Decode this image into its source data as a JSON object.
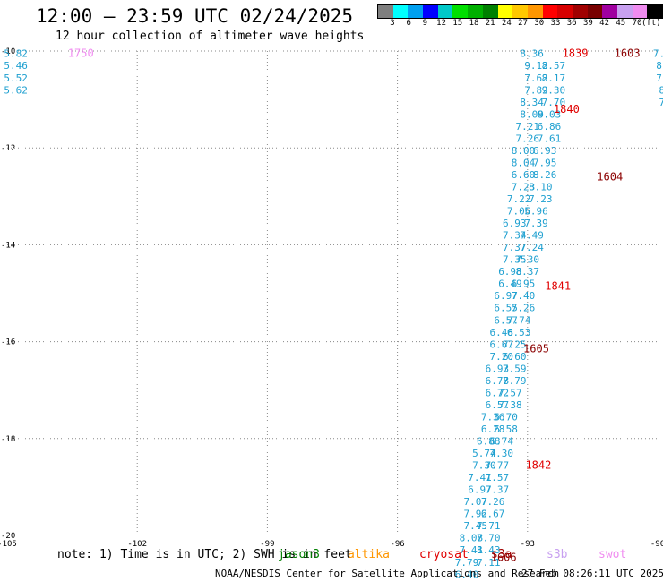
{
  "header": {
    "title": "12:00 – 23:59 UTC 02/24/2025",
    "subtitle": "12 hour collection of altimeter wave heights"
  },
  "color_scale": {
    "colors": [
      "#7f7f7f",
      "#00ffff",
      "#00a0f0",
      "#0000ff",
      "#00c8c8",
      "#00e000",
      "#00b000",
      "#008000",
      "#ffff00",
      "#ffc800",
      "#ff9600",
      "#ff0000",
      "#d70000",
      "#a00000",
      "#780000",
      "#a000a0",
      "#c8a0f0",
      "#f08cf0",
      "#000000"
    ],
    "labels": [
      "3",
      "6",
      "9",
      "12",
      "15",
      "18",
      "21",
      "24",
      "27",
      "30",
      "33",
      "36",
      "39",
      "42",
      "45",
      "70"
    ],
    "unit": "(ft)"
  },
  "map": {
    "lon_ticks": [
      "-105",
      "-102",
      "-99",
      "-96",
      "-93",
      "-90"
    ],
    "lat_ticks": [
      "-10",
      "-12",
      "-14",
      "-16",
      "-18",
      "-20"
    ]
  },
  "chart_data": {
    "type": "scatter",
    "xlim": [
      -105,
      -90
    ],
    "ylim": [
      -20,
      -10
    ],
    "tracks": [
      {
        "color": "#1fa0d0",
        "points": [
          [
            -92.9,
            -10.05,
            "8.36"
          ],
          [
            -92.8,
            -10.3,
            "9.12"
          ],
          [
            -92.8,
            -10.55,
            "7.62"
          ],
          [
            -92.8,
            -10.8,
            "7.82"
          ],
          [
            -92.9,
            -11.05,
            "8.34"
          ],
          [
            -92.9,
            -11.3,
            "8.09"
          ],
          [
            -93.0,
            -11.55,
            "7.21"
          ],
          [
            -93.0,
            -11.8,
            "7.26"
          ],
          [
            -93.1,
            -12.05,
            "8.00"
          ],
          [
            -93.1,
            -12.3,
            "8.04"
          ],
          [
            -93.1,
            -12.55,
            "6.60"
          ],
          [
            -93.1,
            -12.8,
            "7.23"
          ],
          [
            -93.2,
            -13.05,
            "7.22"
          ],
          [
            -93.2,
            -13.3,
            "7.06"
          ],
          [
            -93.3,
            -13.55,
            "6.93"
          ],
          [
            -93.3,
            -13.8,
            "7.34"
          ],
          [
            -93.3,
            -14.05,
            "7.37"
          ],
          [
            -93.3,
            -14.3,
            "7.35"
          ],
          [
            -93.4,
            -14.55,
            "6.98"
          ],
          [
            -93.4,
            -14.8,
            "6.49"
          ],
          [
            -93.5,
            -15.05,
            "6.97"
          ],
          [
            -93.5,
            -15.3,
            "6.55"
          ],
          [
            -93.5,
            -15.55,
            "6.57"
          ],
          [
            -93.6,
            -15.8,
            "6.48"
          ],
          [
            -93.6,
            -16.05,
            "6.67"
          ],
          [
            -93.6,
            -16.3,
            "7.20"
          ],
          [
            -93.7,
            -16.55,
            "6.93"
          ],
          [
            -93.7,
            -16.8,
            "6.78"
          ],
          [
            -93.7,
            -17.05,
            "6.72"
          ],
          [
            -93.7,
            -17.3,
            "6.57"
          ],
          [
            -93.8,
            -17.55,
            "7.36"
          ],
          [
            -93.8,
            -17.8,
            "6.28"
          ],
          [
            -93.9,
            -18.05,
            "6.88"
          ],
          [
            -94.0,
            -18.3,
            "5.74"
          ],
          [
            -94.0,
            -18.55,
            "7.30"
          ],
          [
            -94.1,
            -18.8,
            "7.41"
          ],
          [
            -94.1,
            -19.05,
            "6.97"
          ],
          [
            -94.2,
            -19.3,
            "7.07"
          ],
          [
            -94.2,
            -19.55,
            "7.92"
          ],
          [
            -94.2,
            -19.8,
            "7.45"
          ],
          [
            -94.3,
            -20.05,
            "8.08"
          ],
          [
            -94.3,
            -20.3,
            "7.41"
          ],
          [
            -94.4,
            -20.55,
            "7.79"
          ],
          [
            -94.4,
            -20.8,
            "6.40"
          ]
        ]
      },
      {
        "color": "#1fa0d0",
        "points": [
          [
            -92.4,
            -10.3,
            "8.57"
          ],
          [
            -92.4,
            -10.55,
            "8.17"
          ],
          [
            -92.4,
            -10.8,
            "9.30"
          ],
          [
            -92.4,
            -11.05,
            "7.70"
          ],
          [
            -92.5,
            -11.3,
            "8.03"
          ],
          [
            -92.5,
            -11.55,
            "6.86"
          ],
          [
            -92.5,
            -11.8,
            "7.61"
          ],
          [
            -92.6,
            -12.05,
            "6.93"
          ],
          [
            -92.6,
            -12.3,
            "7.95"
          ],
          [
            -92.6,
            -12.55,
            "8.26"
          ],
          [
            -92.7,
            -12.8,
            "8.10"
          ],
          [
            -92.7,
            -13.05,
            "7.23"
          ],
          [
            -92.8,
            -13.3,
            "5.96"
          ],
          [
            -92.8,
            -13.55,
            "7.39"
          ],
          [
            -92.9,
            -13.8,
            "7.49"
          ],
          [
            -92.9,
            -14.05,
            "7.24"
          ],
          [
            -93.0,
            -14.3,
            "7.30"
          ],
          [
            -93.0,
            -14.55,
            "8.37"
          ],
          [
            -93.1,
            -14.8,
            "6.95"
          ],
          [
            -93.1,
            -15.05,
            "7.40"
          ],
          [
            -93.1,
            -15.3,
            "7.26"
          ],
          [
            -93.2,
            -15.55,
            "7.74"
          ],
          [
            -93.2,
            -15.8,
            "6.53"
          ],
          [
            -93.3,
            -16.05,
            "7.25"
          ],
          [
            -93.3,
            -16.3,
            "6.60"
          ],
          [
            -93.3,
            -16.55,
            "7.59"
          ],
          [
            -93.3,
            -16.8,
            "7.79"
          ],
          [
            -93.4,
            -17.05,
            "7.57"
          ],
          [
            -93.4,
            -17.3,
            "7.38"
          ],
          [
            -93.5,
            -17.55,
            "6.70"
          ],
          [
            -93.5,
            -17.8,
            "6.58"
          ],
          [
            -93.6,
            -18.05,
            "6.74"
          ],
          [
            -93.6,
            -18.3,
            "7.30"
          ],
          [
            -93.7,
            -18.55,
            "7.77"
          ],
          [
            -93.7,
            -18.8,
            "7.57"
          ],
          [
            -93.7,
            -19.05,
            "7.37"
          ],
          [
            -93.8,
            -19.3,
            "7.26"
          ],
          [
            -93.8,
            -19.55,
            "6.67"
          ],
          [
            -93.9,
            -19.8,
            "7.71"
          ],
          [
            -93.9,
            -20.05,
            "7.70"
          ],
          [
            -93.9,
            -20.3,
            "8.43"
          ],
          [
            -93.9,
            -20.55,
            "7.11"
          ]
        ]
      },
      {
        "color": "#1fa0d0",
        "points": [
          [
            -104.8,
            -10.05,
            "5.82"
          ],
          [
            -104.8,
            -10.3,
            "5.46"
          ],
          [
            -104.8,
            -10.55,
            "5.52"
          ],
          [
            -104.8,
            -10.8,
            "5.62"
          ]
        ]
      },
      {
        "color": "#1fa0d0",
        "points": [
          [
            -89.9,
            -10.05,
            "7.9"
          ],
          [
            -89.9,
            -10.3,
            "8."
          ],
          [
            -89.9,
            -10.55,
            "7."
          ],
          [
            -89.9,
            -10.8,
            "8"
          ],
          [
            -89.9,
            -11.05,
            "7"
          ]
        ]
      }
    ],
    "time_labels": [
      {
        "lon": -103.3,
        "lat": -10.05,
        "text": "1750",
        "color": "#f08cf0"
      },
      {
        "lon": -91.9,
        "lat": -10.05,
        "text": "1839",
        "color": "#e00000"
      },
      {
        "lon": -90.7,
        "lat": -10.05,
        "text": "1603",
        "color": "#8b0000"
      },
      {
        "lon": -92.1,
        "lat": -11.2,
        "text": "1840",
        "color": "#e00000"
      },
      {
        "lon": -91.1,
        "lat": -12.6,
        "text": "1604",
        "color": "#8b0000"
      },
      {
        "lon": -92.3,
        "lat": -14.85,
        "text": "1841",
        "color": "#e00000"
      },
      {
        "lon": -92.8,
        "lat": -16.15,
        "text": "1605",
        "color": "#8b0000"
      },
      {
        "lon": -92.75,
        "lat": -18.55,
        "text": "1842",
        "color": "#e00000"
      },
      {
        "lon": -93.55,
        "lat": -20.45,
        "text": "1606",
        "color": "#8b0000"
      }
    ]
  },
  "note": "note: 1) Time is in UTC; 2) SWH is in feet",
  "satellites": [
    {
      "name": "jason3",
      "color": "#008000",
      "left": 310
    },
    {
      "name": "altika",
      "color": "#ff9600",
      "left": 388
    },
    {
      "name": "cryosat",
      "color": "#e00000",
      "left": 468
    },
    {
      "name": "s3a",
      "color": "#a00000",
      "left": 548
    },
    {
      "name": "s3b",
      "color": "#c8a0f0",
      "left": 610
    },
    {
      "name": "swot",
      "color": "#f08cf0",
      "left": 668
    }
  ],
  "footer": {
    "credit": "NOAA/NESDIS Center for Satellite Applications and Research",
    "timestamp": "27 Feb 08:26:11 UTC 2025"
  }
}
